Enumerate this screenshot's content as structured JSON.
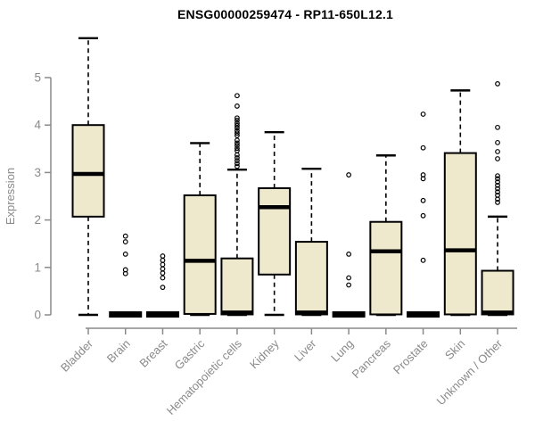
{
  "page": {
    "background": "#ffffff"
  },
  "chart_data": {
    "type": "boxplot",
    "title": "ENSG00000259474 - RP11-650L12.1",
    "ylabel": "Expression",
    "xlabel": "",
    "ylim": [
      0,
      5.9
    ],
    "yticks": [
      0,
      1,
      2,
      3,
      4,
      5
    ],
    "grid": false,
    "legend": false,
    "colors": {
      "box_fill": "#EEE8CD",
      "box_border": "#000000",
      "median": "#000000",
      "whisker": "#000000",
      "outlier": "#000000",
      "axis": "#8a8a8a",
      "tick_label": "#8a8a8a",
      "title": "#000000",
      "background": "#ffffff"
    },
    "categories": [
      "Bladder",
      "Brain",
      "Breast",
      "Gastric",
      "Hematopoietic cells",
      "Kidney",
      "Liver",
      "Lung",
      "Pancreas",
      "Prostate",
      "Skin",
      "Unknown / Other"
    ],
    "series": [
      {
        "name": "Bladder",
        "whisker_low": 0,
        "q1": 2.07,
        "median": 2.97,
        "q3": 4.0,
        "whisker_high": 5.83,
        "outliers": []
      },
      {
        "name": "Brain",
        "whisker_low": 0,
        "q1": 0,
        "median": 0,
        "q3": 0,
        "whisker_high": 0,
        "outliers": [
          1.66,
          1.54,
          1.28,
          0.95,
          0.87
        ]
      },
      {
        "name": "Breast",
        "whisker_low": 0,
        "q1": 0,
        "median": 0,
        "q3": 0,
        "whisker_high": 0,
        "outliers": [
          1.24,
          1.15,
          1.06,
          0.97,
          0.88,
          0.78,
          0.58
        ]
      },
      {
        "name": "Gastric",
        "whisker_low": 0,
        "q1": 0.02,
        "median": 1.14,
        "q3": 2.52,
        "whisker_high": 3.62,
        "outliers": []
      },
      {
        "name": "Hematopoietic cells",
        "whisker_low": 0,
        "q1": 0.01,
        "median": 0.05,
        "q3": 1.19,
        "whisker_high": 3.06,
        "outliers": [
          4.62,
          4.4,
          4.15,
          4.1,
          4.04,
          3.99,
          3.94,
          3.88,
          3.83,
          3.78,
          3.68,
          3.62,
          3.57,
          3.51,
          3.46,
          3.37,
          3.31,
          3.25,
          3.19,
          3.13
        ]
      },
      {
        "name": "Kidney",
        "whisker_low": 0,
        "q1": 0.85,
        "median": 2.27,
        "q3": 2.67,
        "whisker_high": 3.85,
        "outliers": []
      },
      {
        "name": "Liver",
        "whisker_low": 0,
        "q1": 0.01,
        "median": 0.05,
        "q3": 1.54,
        "whisker_high": 3.08,
        "outliers": []
      },
      {
        "name": "Lung",
        "whisker_low": 0,
        "q1": 0,
        "median": 0,
        "q3": 0,
        "whisker_high": 0,
        "outliers": [
          2.95,
          1.28,
          0.78,
          0.63
        ]
      },
      {
        "name": "Pancreas",
        "whisker_low": 0,
        "q1": 0.01,
        "median": 1.34,
        "q3": 1.96,
        "whisker_high": 3.36,
        "outliers": []
      },
      {
        "name": "Prostate",
        "whisker_low": 0,
        "q1": 0,
        "median": 0,
        "q3": 0,
        "whisker_high": 0,
        "outliers": [
          4.23,
          3.52,
          2.95,
          2.87,
          2.41,
          2.09,
          1.15
        ]
      },
      {
        "name": "Skin",
        "whisker_low": 0,
        "q1": 0.01,
        "median": 1.36,
        "q3": 3.41,
        "whisker_high": 4.73,
        "outliers": []
      },
      {
        "name": "Unknown / Other",
        "whisker_low": 0,
        "q1": 0.01,
        "median": 0.05,
        "q3": 0.93,
        "whisker_high": 2.07,
        "outliers": [
          4.87,
          3.95,
          3.63,
          3.44,
          3.29,
          2.93,
          2.87,
          2.8,
          2.73,
          2.66,
          2.59,
          2.52,
          2.44,
          2.37
        ]
      }
    ]
  }
}
